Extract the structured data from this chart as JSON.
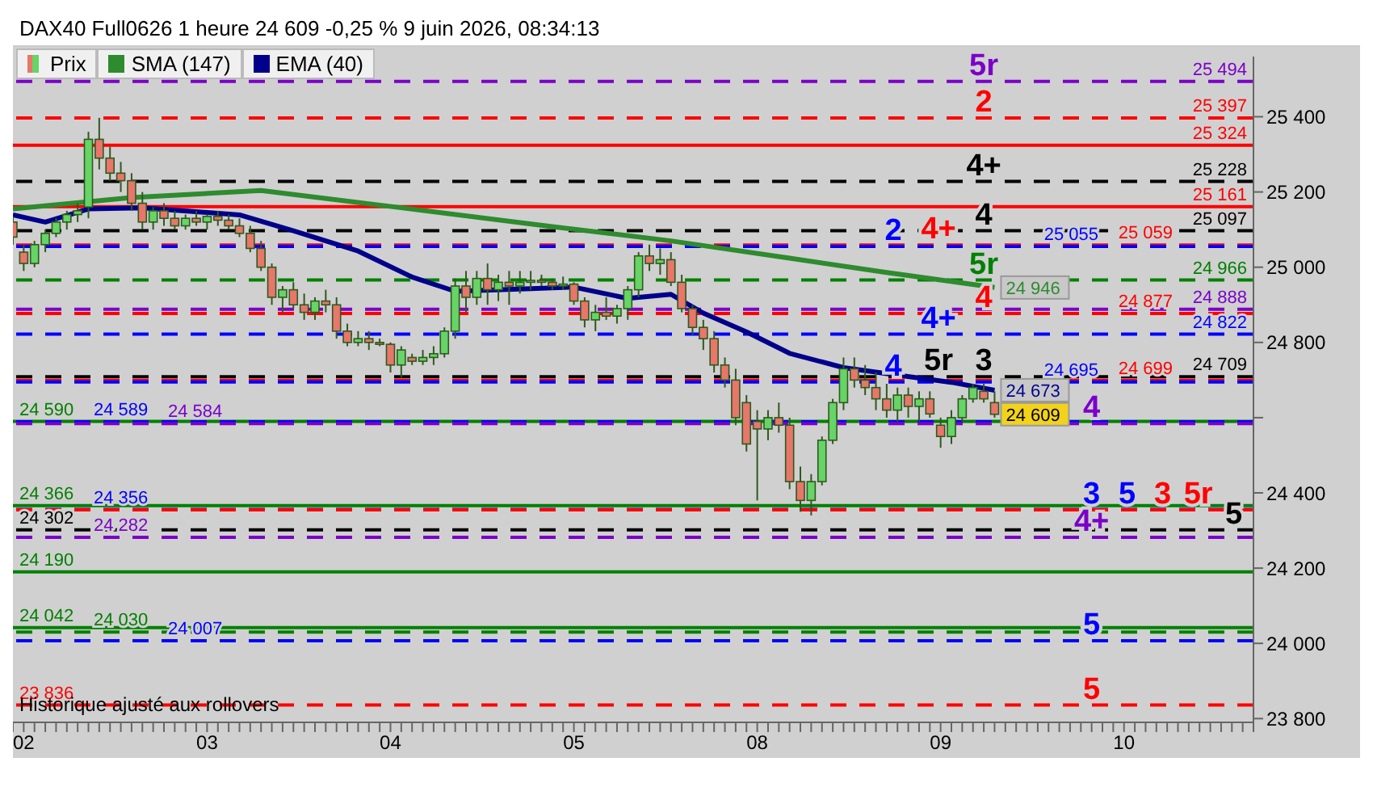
{
  "chart_data": {
    "type": "candlestick",
    "title": "DAX40 Full0626 1 heure 24 609 -0,25 % 9 juin 2026, 08:34:13",
    "legend": "top left",
    "categories": [
      null,
      "02",
      null,
      null,
      null,
      null,
      null,
      null,
      null,
      null,
      null,
      null,
      null,
      null,
      null,
      null,
      null,
      null,
      "03",
      null,
      null,
      null,
      null,
      null,
      null,
      null,
      null,
      null,
      null,
      null,
      null,
      null,
      null,
      null,
      null,
      "04",
      null,
      null,
      null,
      null,
      null,
      null,
      null,
      null,
      null,
      null,
      null,
      null,
      null,
      null,
      null,
      null,
      "05",
      null,
      null,
      null,
      null,
      null,
      null,
      null,
      null,
      null,
      null,
      null,
      null,
      null,
      null,
      null,
      null,
      "08",
      null,
      null,
      null,
      null,
      null,
      null,
      null,
      null,
      null,
      null,
      null,
      null,
      null,
      null,
      null,
      null,
      "09",
      null,
      null,
      null,
      null,
      null,
      null,
      null,
      null,
      null,
      null,
      null,
      null,
      null,
      null,
      null,
      null,
      "10",
      null,
      null,
      null,
      null,
      null,
      null,
      null,
      null,
      null,
      null,
      null,
      null
    ],
    "ylim": [
      23790,
      25560
    ],
    "yticks": [
      {
        "value": 23800,
        "label": "23 800"
      },
      {
        "value": 24000,
        "label": "24 000"
      },
      {
        "value": 24200,
        "label": "24 200"
      },
      {
        "value": 24400,
        "label": "24 400"
      },
      {
        "value": 24600,
        "label": null
      },
      {
        "value": 24800,
        "label": "24 800"
      },
      {
        "value": 25000,
        "label": "25 000"
      },
      {
        "value": 25200,
        "label": "25 200"
      },
      {
        "value": 25400,
        "label": "25 400"
      }
    ],
    "series": [
      {
        "name": "Prix",
        "colors": [
          "#e8766a",
          "#e8766a",
          "#66d466",
          "#66d466",
          "#66d466",
          "#66d466",
          "#66d466",
          "#66d466",
          "#e8766a",
          "#e8766a",
          "#e8766a",
          "#e8766a",
          "#e8766a",
          "#66d466",
          "#e8766a",
          "#e8766a",
          "#66d466",
          "#e8766a",
          "#66d466",
          "#e8766a",
          "#e8766a",
          "#e8766a",
          "#e8766a",
          "#e8766a",
          "#e8766a",
          "#66d466",
          "#e8766a",
          "#e8766a",
          "#66d466",
          "#e8766a",
          "#e8766a",
          "#e8766a",
          "#66d466",
          "#e8766a",
          "#e8766a",
          "#e8766a",
          "#66d466",
          "#e8766a",
          "#66d466",
          "#66d466",
          "#66d466",
          "#66d466",
          "#e8766a",
          "#66d466",
          "#e8766a",
          "#66d466",
          "#e8766a",
          "#66d466",
          "#66d466",
          "#e8766a",
          "#e8766a",
          "#66d466",
          "#e8766a",
          "#e8766a",
          "#66d466",
          "#e8766a",
          "#66d466",
          "#66d466",
          "#66d466",
          "#e8766a",
          "#66d466",
          "#e8766a",
          "#e8766a",
          "#e8766a",
          "#e8766a",
          "#e8766a",
          "#e8766a",
          "#e8766a",
          "#e8766a",
          "#e8766a",
          "#66d466",
          "#e8766a",
          "#e8766a",
          "#e8766a",
          "#66d466",
          "#66d466",
          "#66d466",
          "#66d466",
          "#e8766a",
          "#e8766a",
          "#e8766a",
          "#e8766a",
          "#66d466",
          "#e8766a",
          "#66d466",
          "#e8766a",
          "#e8766a",
          "#66d466",
          "#66d466",
          "#66d466",
          "#e8766a",
          "#e8766a",
          null,
          null,
          null,
          null,
          null,
          null,
          null,
          null,
          null,
          null,
          null,
          null,
          null,
          null,
          null,
          null,
          null,
          null,
          null,
          null,
          null,
          null,
          null,
          null
        ],
        "value_labels": [
          null,
          null,
          null,
          null,
          null,
          null,
          null,
          null,
          null,
          null,
          null,
          null,
          null,
          null,
          null,
          null,
          null,
          null,
          null,
          null,
          null,
          null,
          null,
          null,
          null,
          null,
          null,
          null,
          null,
          null,
          null,
          null,
          null,
          null,
          null,
          null,
          null,
          null,
          null,
          null,
          null,
          null,
          null,
          null,
          null,
          null,
          null,
          null,
          null,
          null,
          null,
          null,
          null,
          null,
          null,
          null,
          null,
          null,
          null,
          null,
          null,
          null,
          null,
          null,
          null,
          null,
          null,
          null,
          null,
          null,
          null,
          null,
          null,
          null,
          null,
          null,
          null,
          null,
          null,
          null,
          null,
          null,
          null,
          null,
          null,
          null,
          null,
          null,
          null,
          null,
          null,
          "24 609",
          null,
          null,
          null,
          null,
          null,
          null,
          null,
          null,
          null,
          null,
          null,
          null,
          null,
          null,
          null,
          null,
          null,
          null,
          null,
          null,
          null,
          null,
          null,
          null
        ],
        "ohlc": [
          [
            25120,
            25135,
            25060,
            25080
          ],
          [
            25040,
            25060,
            24990,
            25010
          ],
          [
            25010,
            25070,
            25000,
            25060
          ],
          [
            25060,
            25100,
            25040,
            25090
          ],
          [
            25090,
            25130,
            25080,
            25120
          ],
          [
            25120,
            25150,
            25100,
            25140
          ],
          [
            25140,
            25170,
            25120,
            25150
          ],
          [
            25160,
            25360,
            25130,
            25340
          ],
          [
            25340,
            25397,
            25260,
            25290
          ],
          [
            25290,
            25320,
            25230,
            25250
          ],
          [
            25250,
            25280,
            25200,
            25230
          ],
          [
            25230,
            25250,
            25150,
            25170
          ],
          [
            25170,
            25200,
            25100,
            25120
          ],
          [
            25120,
            25160,
            25100,
            25150
          ],
          [
            25150,
            25170,
            25110,
            25130
          ],
          [
            25130,
            25150,
            25100,
            25110
          ],
          [
            25110,
            25140,
            25100,
            25130
          ],
          [
            25130,
            25150,
            25110,
            25120
          ],
          [
            25120,
            25140,
            25100,
            25135
          ],
          [
            25135,
            25150,
            25110,
            25125
          ],
          [
            25125,
            25140,
            25100,
            25110
          ],
          [
            25110,
            25130,
            25080,
            25090
          ],
          [
            25090,
            25110,
            25040,
            25050
          ],
          [
            25050,
            25070,
            24990,
            25000
          ],
          [
            25000,
            25010,
            24900,
            24920
          ],
          [
            24920,
            24950,
            24880,
            24940
          ],
          [
            24940,
            24960,
            24890,
            24900
          ],
          [
            24900,
            24930,
            24860,
            24880
          ],
          [
            24880,
            24920,
            24860,
            24910
          ],
          [
            24910,
            24940,
            24880,
            24900
          ],
          [
            24900,
            24920,
            24810,
            24830
          ],
          [
            24830,
            24850,
            24790,
            24800
          ],
          [
            24800,
            24830,
            24790,
            24810
          ],
          [
            24810,
            24830,
            24780,
            24800
          ],
          [
            24800,
            24810,
            24790,
            24795
          ],
          [
            24795,
            24800,
            24720,
            24740
          ],
          [
            24740,
            24790,
            24706,
            24780
          ],
          [
            24760,
            24770,
            24740,
            24750
          ],
          [
            24750,
            24780,
            24740,
            24760
          ],
          [
            24760,
            24790,
            24740,
            24770
          ],
          [
            24770,
            24840,
            24760,
            24830
          ],
          [
            24830,
            24970,
            24810,
            24950
          ],
          [
            24950,
            24990,
            24880,
            24920
          ],
          [
            24920,
            24990,
            24900,
            24970
          ],
          [
            24970,
            25010,
            24900,
            24940
          ],
          [
            24940,
            24980,
            24910,
            24960
          ],
          [
            24960,
            24990,
            24900,
            24950
          ],
          [
            24950,
            24990,
            24930,
            24960
          ],
          [
            24960,
            24990,
            24940,
            24965
          ],
          [
            24965,
            24980,
            24950,
            24960
          ],
          [
            24960,
            24970,
            24940,
            24950
          ],
          [
            24950,
            24975,
            24940,
            24955
          ],
          [
            24955,
            24960,
            24900,
            24910
          ],
          [
            24910,
            24920,
            24840,
            24860
          ],
          [
            24860,
            24900,
            24830,
            24880
          ],
          [
            24880,
            24920,
            24860,
            24870
          ],
          [
            24870,
            24900,
            24850,
            24890
          ],
          [
            24890,
            24950,
            24860,
            24940
          ],
          [
            24940,
            25040,
            24920,
            25030
          ],
          [
            25030,
            25060,
            24990,
            25010
          ],
          [
            25010,
            25050,
            24980,
            25020
          ],
          [
            25020,
            25040,
            24950,
            24960
          ],
          [
            24960,
            24980,
            24880,
            24890
          ],
          [
            24890,
            24900,
            24820,
            24840
          ],
          [
            24840,
            24860,
            24780,
            24810
          ],
          [
            24810,
            24830,
            24720,
            24740
          ],
          [
            24740,
            24760,
            24680,
            24700
          ],
          [
            24700,
            24730,
            24580,
            24600
          ],
          [
            24640,
            24660,
            24510,
            24530
          ],
          [
            24590,
            24620,
            24380,
            24570
          ],
          [
            24570,
            24620,
            24540,
            24600
          ],
          [
            24600,
            24640,
            24560,
            24580
          ],
          [
            24580,
            24600,
            24410,
            24430
          ],
          [
            24430,
            24470,
            24350,
            24380
          ],
          [
            24380,
            24450,
            24340,
            24430
          ],
          [
            24430,
            24550,
            24420,
            24540
          ],
          [
            24540,
            24650,
            24530,
            24640
          ],
          [
            24640,
            24760,
            24620,
            24730
          ],
          [
            24730,
            24760,
            24680,
            24700
          ],
          [
            24700,
            24740,
            24660,
            24680
          ],
          [
            24680,
            24720,
            24620,
            24650
          ],
          [
            24650,
            24690,
            24600,
            24620
          ],
          [
            24620,
            24680,
            24590,
            24660
          ],
          [
            24660,
            24680,
            24600,
            24630
          ],
          [
            24630,
            24670,
            24590,
            24650
          ],
          [
            24650,
            24670,
            24600,
            24610
          ],
          [
            24580,
            24600,
            24520,
            24550
          ],
          [
            24550,
            24620,
            24530,
            24600
          ],
          [
            24600,
            24660,
            24590,
            24650
          ],
          [
            24650,
            24690,
            24640,
            24680
          ],
          [
            24670,
            24690,
            24640,
            24650
          ],
          [
            24640,
            24670,
            24600,
            24609
          ],
          null,
          null,
          null,
          null,
          null,
          null,
          null,
          null,
          null,
          null,
          null,
          null,
          null,
          null,
          null,
          null,
          null,
          null,
          null,
          null,
          null,
          null,
          null,
          null
        ]
      },
      {
        "name": "SMA (147)",
        "type": "line",
        "color": "#2e8b2e",
        "values": [
          25155,
          null,
          null,
          null,
          null,
          null,
          null,
          null,
          null,
          null,
          null,
          25185,
          null,
          null,
          null,
          null,
          null,
          null,
          null,
          null,
          null,
          null,
          null,
          25204,
          null,
          null,
          null,
          null,
          null,
          null,
          null,
          null,
          null,
          null,
          null,
          null,
          25158,
          null,
          null,
          null,
          null,
          null,
          null,
          null,
          null,
          null,
          null,
          null,
          null,
          null,
          25108,
          null,
          null,
          null,
          null,
          null,
          null,
          null,
          null,
          null,
          null,
          25070,
          null,
          null,
          null,
          null,
          null,
          null,
          null,
          null,
          null,
          null,
          25024,
          null,
          null,
          null,
          null,
          null,
          null,
          null,
          null,
          24986,
          null,
          null,
          null,
          null,
          null,
          null,
          null,
          null,
          null,
          24946,
          null,
          null,
          null,
          null,
          null,
          null,
          null,
          null,
          null,
          null,
          null,
          null,
          null,
          null,
          null,
          null,
          null,
          null,
          null,
          null,
          null,
          null,
          null,
          null
        ],
        "value_labels": [
          null,
          null,
          null,
          null,
          null,
          null,
          null,
          null,
          null,
          null,
          null,
          null,
          null,
          null,
          null,
          null,
          null,
          null,
          null,
          null,
          null,
          null,
          null,
          null,
          null,
          null,
          null,
          null,
          null,
          null,
          null,
          null,
          null,
          null,
          null,
          null,
          null,
          null,
          null,
          null,
          null,
          null,
          null,
          null,
          null,
          null,
          null,
          null,
          null,
          null,
          null,
          null,
          null,
          null,
          null,
          null,
          null,
          null,
          null,
          null,
          null,
          null,
          null,
          null,
          null,
          null,
          null,
          null,
          null,
          null,
          null,
          null,
          null,
          null,
          null,
          null,
          null,
          null,
          null,
          null,
          null,
          null,
          null,
          null,
          null,
          null,
          null,
          null,
          null,
          null,
          null,
          "24 946",
          null,
          null,
          null,
          null,
          null,
          null,
          null,
          null,
          null,
          null,
          null,
          null,
          null,
          null,
          null,
          null,
          null,
          null,
          null,
          null,
          null,
          null,
          null,
          null
        ]
      },
      {
        "name": "EMA (40)",
        "type": "line",
        "color": "#00008b",
        "values": [
          25139,
          null,
          null,
          25120,
          null,
          null,
          null,
          25155,
          null,
          null,
          null,
          null,
          25158,
          null,
          null,
          null,
          null,
          null,
          null,
          null,
          null,
          25139,
          null,
          null,
          null,
          null,
          25097,
          null,
          null,
          null,
          null,
          null,
          25043,
          null,
          null,
          null,
          null,
          24974,
          null,
          null,
          null,
          24936,
          null,
          null,
          null,
          null,
          null,
          null,
          24943,
          null,
          null,
          null,
          24947,
          null,
          null,
          null,
          null,
          24917,
          null,
          null,
          null,
          24928,
          null,
          null,
          24878,
          null,
          null,
          null,
          24828,
          null,
          null,
          null,
          24771,
          null,
          null,
          null,
          null,
          24733,
          null,
          null,
          null,
          null,
          24713,
          null,
          null,
          null,
          null,
          24694,
          null,
          null,
          null,
          24673,
          null,
          null,
          null,
          null,
          null,
          null,
          null,
          null,
          null,
          null,
          null,
          null,
          null,
          null,
          null,
          null,
          null,
          null,
          null,
          null,
          null,
          null,
          null,
          null
        ],
        "value_labels": [
          null,
          null,
          null,
          null,
          null,
          null,
          null,
          null,
          null,
          null,
          null,
          null,
          null,
          null,
          null,
          null,
          null,
          null,
          null,
          null,
          null,
          null,
          null,
          null,
          null,
          null,
          null,
          null,
          null,
          null,
          null,
          null,
          null,
          null,
          null,
          null,
          null,
          null,
          null,
          null,
          null,
          null,
          null,
          null,
          null,
          null,
          null,
          null,
          null,
          null,
          null,
          null,
          null,
          null,
          null,
          null,
          null,
          null,
          null,
          null,
          null,
          null,
          null,
          null,
          null,
          null,
          null,
          null,
          null,
          null,
          null,
          null,
          null,
          null,
          null,
          null,
          null,
          null,
          null,
          null,
          null,
          null,
          null,
          null,
          null,
          null,
          null,
          null,
          null,
          null,
          null,
          "24 673",
          null,
          null,
          null,
          null,
          null,
          null,
          null,
          null,
          null,
          null,
          null,
          null,
          null,
          null,
          null,
          null,
          null,
          null,
          null,
          null,
          null,
          null,
          null,
          null
        ]
      }
    ],
    "ref_lines": [
      {
        "axis": "y",
        "value": 25494,
        "label": "25 494",
        "color": "#7b00c8",
        "line_style": "dashed"
      },
      {
        "axis": "y",
        "value": 25397,
        "label": "25 397",
        "color": "#ff0000",
        "line_style": "dashed"
      },
      {
        "axis": "y",
        "value": 25324,
        "label": "25 324",
        "color": "#ff0000",
        "line_style": "solid"
      },
      {
        "axis": "y",
        "value": 25228,
        "label": "25 228",
        "color": "#000000",
        "line_style": "dashed"
      },
      {
        "axis": "y",
        "value": 25161,
        "label": "25 161",
        "color": "#ff0000",
        "line_style": "solid"
      },
      {
        "axis": "y",
        "value": 25097,
        "label": "25 097",
        "color": "#000000",
        "line_style": "dashed"
      },
      {
        "axis": "y",
        "value": 25059,
        "label": "25 059",
        "color": "#ff0000",
        "line_style": "dashed"
      },
      {
        "axis": "y",
        "value": 25055,
        "label": "25 055",
        "color": "#0000ff",
        "line_style": "dashed"
      },
      {
        "axis": "y",
        "value": 24966,
        "label": "24 966",
        "color": "#008000",
        "line_style": "dashed"
      },
      {
        "axis": "y",
        "value": 24888,
        "label": "24 888",
        "color": "#7b00c8",
        "line_style": "dashed"
      },
      {
        "axis": "y",
        "value": 24877,
        "label": "24 877",
        "color": "#ff0000",
        "line_style": "dashed"
      },
      {
        "axis": "y",
        "value": 24822,
        "label": "24 822",
        "color": "#0000ff",
        "line_style": "dashed"
      },
      {
        "axis": "y",
        "value": 24709,
        "label": "24 709",
        "color": "#000000",
        "line_style": "dashed"
      },
      {
        "axis": "y",
        "value": 24699,
        "label": "24 699",
        "color": "#ff0000",
        "line_style": "dashed"
      },
      {
        "axis": "y",
        "value": 24695,
        "label": "24 695",
        "color": "#0000ff",
        "line_style": "dashed"
      },
      {
        "axis": "y",
        "value": 24590,
        "label": "24 590",
        "color": "#008000",
        "line_style": "solid"
      },
      {
        "axis": "y",
        "value": 24589,
        "label": "24 589",
        "color": "#0000ff",
        "line_style": "dashed"
      },
      {
        "axis": "y",
        "value": 24584,
        "label": "24 584",
        "color": "#7b00c8",
        "line_style": "dashed"
      },
      {
        "axis": "y",
        "value": 24366,
        "label": "24 366",
        "color": "#008000",
        "line_style": "solid"
      },
      {
        "axis": "y",
        "value": 24356,
        "label": "24 356",
        "color": "#0000ff",
        "line_style": "dashed"
      },
      {
        "axis": "y",
        "value": 24355,
        "color": "#ff0000",
        "line_style": "dashed"
      },
      {
        "axis": "y",
        "value": 24302,
        "label": "24 302",
        "color": "#000000",
        "line_style": "dashed"
      },
      {
        "axis": "y",
        "value": 24282,
        "label": "24 282",
        "color": "#7b00c8",
        "line_style": "dashed"
      },
      {
        "axis": "y",
        "value": 24190,
        "label": "24 190",
        "color": "#008000",
        "line_style": "solid"
      },
      {
        "axis": "y",
        "value": 24042,
        "label": "24 042",
        "color": "#008000",
        "line_style": "solid"
      },
      {
        "axis": "y",
        "value": 24030,
        "label": "24 030",
        "color": "#008000",
        "line_style": "dashed"
      },
      {
        "axis": "y",
        "value": 24007,
        "label": "24 007",
        "color": "#0000ff",
        "line_style": "dashed"
      },
      {
        "axis": "y",
        "value": 23836,
        "label": "23 836",
        "color": "#ff0000",
        "line_style": "dashed"
      }
    ],
    "annotations": [
      {
        "text": "5r",
        "y": 25494
      },
      {
        "text": "2",
        "y": 25397
      },
      {
        "text": "4+",
        "y": 25228
      },
      {
        "text": "4",
        "y": 25097
      },
      {
        "text": "2",
        "y": 25055
      },
      {
        "text": "4+",
        "y": 25059
      },
      {
        "text": "5r",
        "y": 24966
      },
      {
        "text": "4",
        "y": 24877
      },
      {
        "text": "4+",
        "y": 24822
      },
      {
        "text": "3",
        "y": 24709
      },
      {
        "text": "4",
        "y": 24695
      },
      {
        "text": "5r",
        "y": 24709
      },
      {
        "text": "4",
        "y": 24584
      },
      {
        "text": "3",
        "y": 24355
      },
      {
        "text": "3",
        "y": 24356
      },
      {
        "text": "5",
        "y": 24356
      },
      {
        "text": "5r",
        "y": 24355
      },
      {
        "text": "4+",
        "y": 24282
      },
      {
        "text": "5",
        "y": 24302
      },
      {
        "text": "5",
        "y": 24007
      },
      {
        "text": "5",
        "y": 23836
      },
      "Historique ajusté aux rollovers"
    ]
  }
}
